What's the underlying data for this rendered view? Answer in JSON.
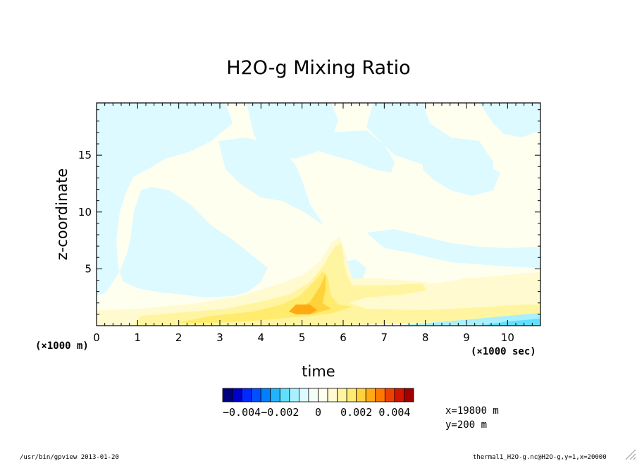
{
  "chart_data": {
    "type": "heatmap",
    "title": "H2O-g Mixing Ratio",
    "xlabel": "time",
    "ylabel": "z-coordinate",
    "x_unit": "(×1000 sec)",
    "y_unit": "(×1000 m)",
    "xlim": [
      0,
      10.8
    ],
    "ylim": [
      0,
      19.6
    ],
    "x_ticks": [
      0,
      1,
      2,
      3,
      4,
      5,
      6,
      7,
      8,
      9,
      10
    ],
    "y_ticks": [
      5,
      10,
      15
    ],
    "colorbar": {
      "levels": [
        -0.005,
        -0.0045,
        -0.004,
        -0.0035,
        -0.003,
        -0.0025,
        -0.002,
        -0.0015,
        -0.001,
        -0.0005,
        0,
        0.0005,
        0.001,
        0.0015,
        0.002,
        0.0025,
        0.003,
        0.0035,
        0.004,
        0.0045
      ],
      "colors": [
        "#00007f",
        "#0000c8",
        "#0028ff",
        "#0050ff",
        "#0080ff",
        "#20b4ff",
        "#60e0ff",
        "#a8f0ff",
        "#dcfaff",
        "#f4fff8",
        "#fffff0",
        "#fffad0",
        "#fff5a0",
        "#ffeb6e",
        "#ffd23c",
        "#ffaa14",
        "#ff7800",
        "#f04000",
        "#d21400",
        "#a00000"
      ],
      "tick_labels": [
        "−0.004",
        "−0.002",
        "0",
        "0.002",
        "0.004"
      ],
      "tick_values": [
        -0.004,
        -0.002,
        0,
        0.002,
        0.004
      ]
    },
    "annotations": {
      "x_location": "x=19800 m",
      "y_location": "y=200 m"
    }
  },
  "footer": {
    "program": "/usr/bin/gpview  2013-01-20",
    "source": "thermal1_H2O-g.nc@H2O-g,y=1,x=20000"
  }
}
